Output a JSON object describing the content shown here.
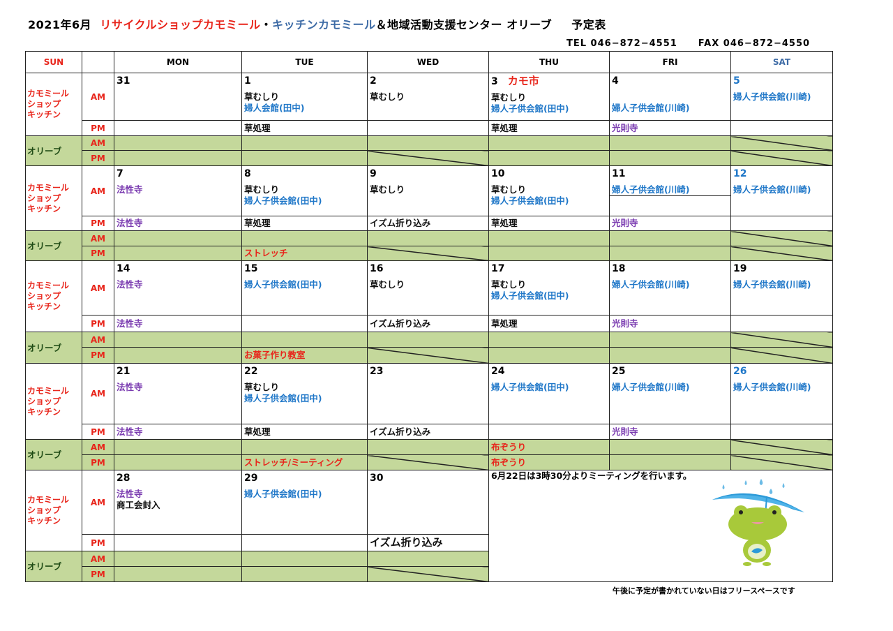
{
  "title": {
    "date": "2021年6月",
    "part1": "リサイクルショップカモミール",
    "sep": "・",
    "part2": "キッチンカモミール",
    "part3": "＆地域活動支援センター オリーブ",
    "suffix": "予定表"
  },
  "contact": {
    "tel": "TEL 046−872−4551",
    "fax": "FAX 046−872−4550"
  },
  "colors": {
    "red": "#e8251b",
    "blue": "#1f77c8",
    "purple": "#7a3bb0",
    "black": "#111111",
    "navy": "#3c6aa5",
    "olive_bg": "#c4d89b",
    "olive_label": "#1e4a14"
  },
  "header": {
    "sun": "SUN",
    "days": [
      "MON",
      "TUE",
      "WED",
      "THU",
      "FRI",
      "SAT"
    ]
  },
  "labels": {
    "shop": [
      "カモミール",
      "ショップ",
      "キッチン"
    ],
    "olive": "オリーブ",
    "am": "AM",
    "pm": "PM"
  },
  "weeks": [
    {
      "days": [
        {
          "date": "31",
          "am": [],
          "pm": null
        },
        {
          "date": "1",
          "am": [
            {
              "text": "草むしり",
              "color": "black"
            },
            {
              "text": "婦人会館(田中)",
              "color": "blue"
            }
          ],
          "pm": {
            "text": "草処理",
            "color": "black"
          }
        },
        {
          "date": "2",
          "am": [
            {
              "text": "草むしり",
              "color": "black"
            }
          ],
          "pm": null
        },
        {
          "date": "3",
          "extra": "カモ市",
          "am": [
            {
              "text": "草むしり",
              "color": "black"
            },
            {
              "text": "婦人子供会館(田中)",
              "color": "blue"
            }
          ],
          "pm": {
            "text": "草処理",
            "color": "black"
          }
        },
        {
          "date": "4",
          "am": [
            {
              "text": "",
              "color": "black"
            },
            {
              "text": "婦人子供会館(川崎)",
              "color": "blue"
            }
          ],
          "pm": {
            "text": "光則寺",
            "color": "purple"
          }
        },
        {
          "date": "5",
          "date_color": "blue",
          "am": [
            {
              "text": "婦人子供会館(川崎)",
              "color": "blue"
            }
          ],
          "pm": null
        }
      ],
      "olive": {
        "am": [
          null,
          null,
          null,
          null,
          null,
          null
        ],
        "pm": [
          null,
          null,
          null,
          null,
          null,
          null
        ]
      }
    },
    {
      "days": [
        {
          "date": "7",
          "am": [
            {
              "text": "法性寺",
              "color": "purple"
            }
          ],
          "pm": {
            "text": "法性寺",
            "color": "purple"
          }
        },
        {
          "date": "8",
          "am": [
            {
              "text": "草むしり",
              "color": "black"
            },
            {
              "text": "婦人子供会館(田中)",
              "color": "blue"
            }
          ],
          "pm": {
            "text": "草処理",
            "color": "black"
          }
        },
        {
          "date": "9",
          "am": [
            {
              "text": "草むしり",
              "color": "black"
            }
          ],
          "pm": {
            "text": "イズム折り込み",
            "color": "black"
          }
        },
        {
          "date": "10",
          "am": [
            {
              "text": "草むしり",
              "color": "black"
            },
            {
              "text": "婦人子供会館(田中)",
              "color": "blue"
            }
          ],
          "pm": {
            "text": "草処理",
            "color": "black"
          }
        },
        {
          "date": "11",
          "am": [
            {
              "text": "婦人子供会館(川崎)",
              "color": "blue",
              "underline": true
            }
          ],
          "pm": {
            "text": "光則寺",
            "color": "purple"
          }
        },
        {
          "date": "12",
          "date_color": "blue",
          "am": [
            {
              "text": "婦人子供会館(川崎)",
              "color": "blue"
            }
          ],
          "pm": null
        }
      ],
      "olive": {
        "am": [
          null,
          null,
          null,
          null,
          null,
          null
        ],
        "pm": [
          null,
          {
            "text": "ストレッチ",
            "color": "red"
          },
          null,
          null,
          null,
          null
        ]
      }
    },
    {
      "days": [
        {
          "date": "14",
          "am": [
            {
              "text": "法性寺",
              "color": "purple"
            }
          ],
          "pm": {
            "text": "法性寺",
            "color": "purple"
          }
        },
        {
          "date": "15",
          "am": [
            {
              "text": "婦人子供会館(田中)",
              "color": "blue"
            }
          ],
          "pm": null
        },
        {
          "date": "16",
          "am": [
            {
              "text": "草むしり",
              "color": "black"
            }
          ],
          "pm": {
            "text": "イズム折り込み",
            "color": "black"
          }
        },
        {
          "date": "17",
          "am": [
            {
              "text": "草むしり",
              "color": "black"
            },
            {
              "text": "婦人子供会館(田中)",
              "color": "blue"
            }
          ],
          "pm": {
            "text": "草処理",
            "color": "black"
          }
        },
        {
          "date": "18",
          "am": [
            {
              "text": "婦人子供会館(川崎)",
              "color": "blue"
            }
          ],
          "pm": {
            "text": "光則寺",
            "color": "purple"
          }
        },
        {
          "date": "19",
          "am": [
            {
              "text": "婦人子供会館(川崎)",
              "color": "blue"
            }
          ],
          "pm": null
        }
      ],
      "olive": {
        "am": [
          null,
          null,
          null,
          null,
          null,
          null
        ],
        "pm": [
          null,
          {
            "text": "お菓子作り教室",
            "color": "red"
          },
          null,
          null,
          null,
          null
        ]
      }
    },
    {
      "days": [
        {
          "date": "21",
          "am": [
            {
              "text": "法性寺",
              "color": "purple"
            }
          ],
          "pm": {
            "text": "法性寺",
            "color": "purple"
          }
        },
        {
          "date": "22",
          "am": [
            {
              "text": "草むしり",
              "color": "black"
            },
            {
              "text": "婦人子供会館(田中)",
              "color": "blue"
            }
          ],
          "pm": {
            "text": "草処理",
            "color": "black"
          }
        },
        {
          "date": "23",
          "am": [],
          "pm": {
            "text": "イズム折り込み",
            "color": "black"
          }
        },
        {
          "date": "24",
          "am": [
            {
              "text": "婦人子供会館(田中)",
              "color": "blue"
            }
          ],
          "pm": null
        },
        {
          "date": "25",
          "am": [
            {
              "text": "婦人子供会館(川崎)",
              "color": "blue"
            }
          ],
          "pm": {
            "text": "光則寺",
            "color": "purple"
          }
        },
        {
          "date": "26",
          "date_color": "blue",
          "am": [
            {
              "text": "婦人子供会館(川崎)",
              "color": "blue"
            }
          ],
          "pm": null
        }
      ],
      "olive": {
        "am": [
          null,
          null,
          null,
          {
            "text": "布ぞうり",
            "color": "red"
          },
          null,
          null
        ],
        "pm": [
          null,
          {
            "text": "ストレッチ/ミーティング",
            "color": "red"
          },
          null,
          {
            "text": "布ぞうり",
            "color": "red"
          },
          null,
          null
        ]
      }
    },
    {
      "days": [
        {
          "date": "28",
          "am": [
            {
              "text": "法性寺",
              "color": "purple"
            },
            {
              "text": "商工会封入",
              "color": "black"
            }
          ],
          "pm": null
        },
        {
          "date": "29",
          "am": [
            {
              "text": "婦人子供会館(田中)",
              "color": "blue"
            }
          ],
          "pm": null
        },
        {
          "date": "30",
          "am": [],
          "pm": {
            "text": "イズム折り込み",
            "color": "black",
            "large": true
          }
        }
      ],
      "olive": {
        "am": [
          null,
          null,
          null
        ],
        "pm": [
          null,
          null,
          null
        ]
      },
      "note": "6月22日は3時30分よりミーティングを行います。"
    }
  ],
  "footer": "午後に予定が書かれていない日はフリースペースです",
  "illustration": "frog-with-umbrella-icon"
}
